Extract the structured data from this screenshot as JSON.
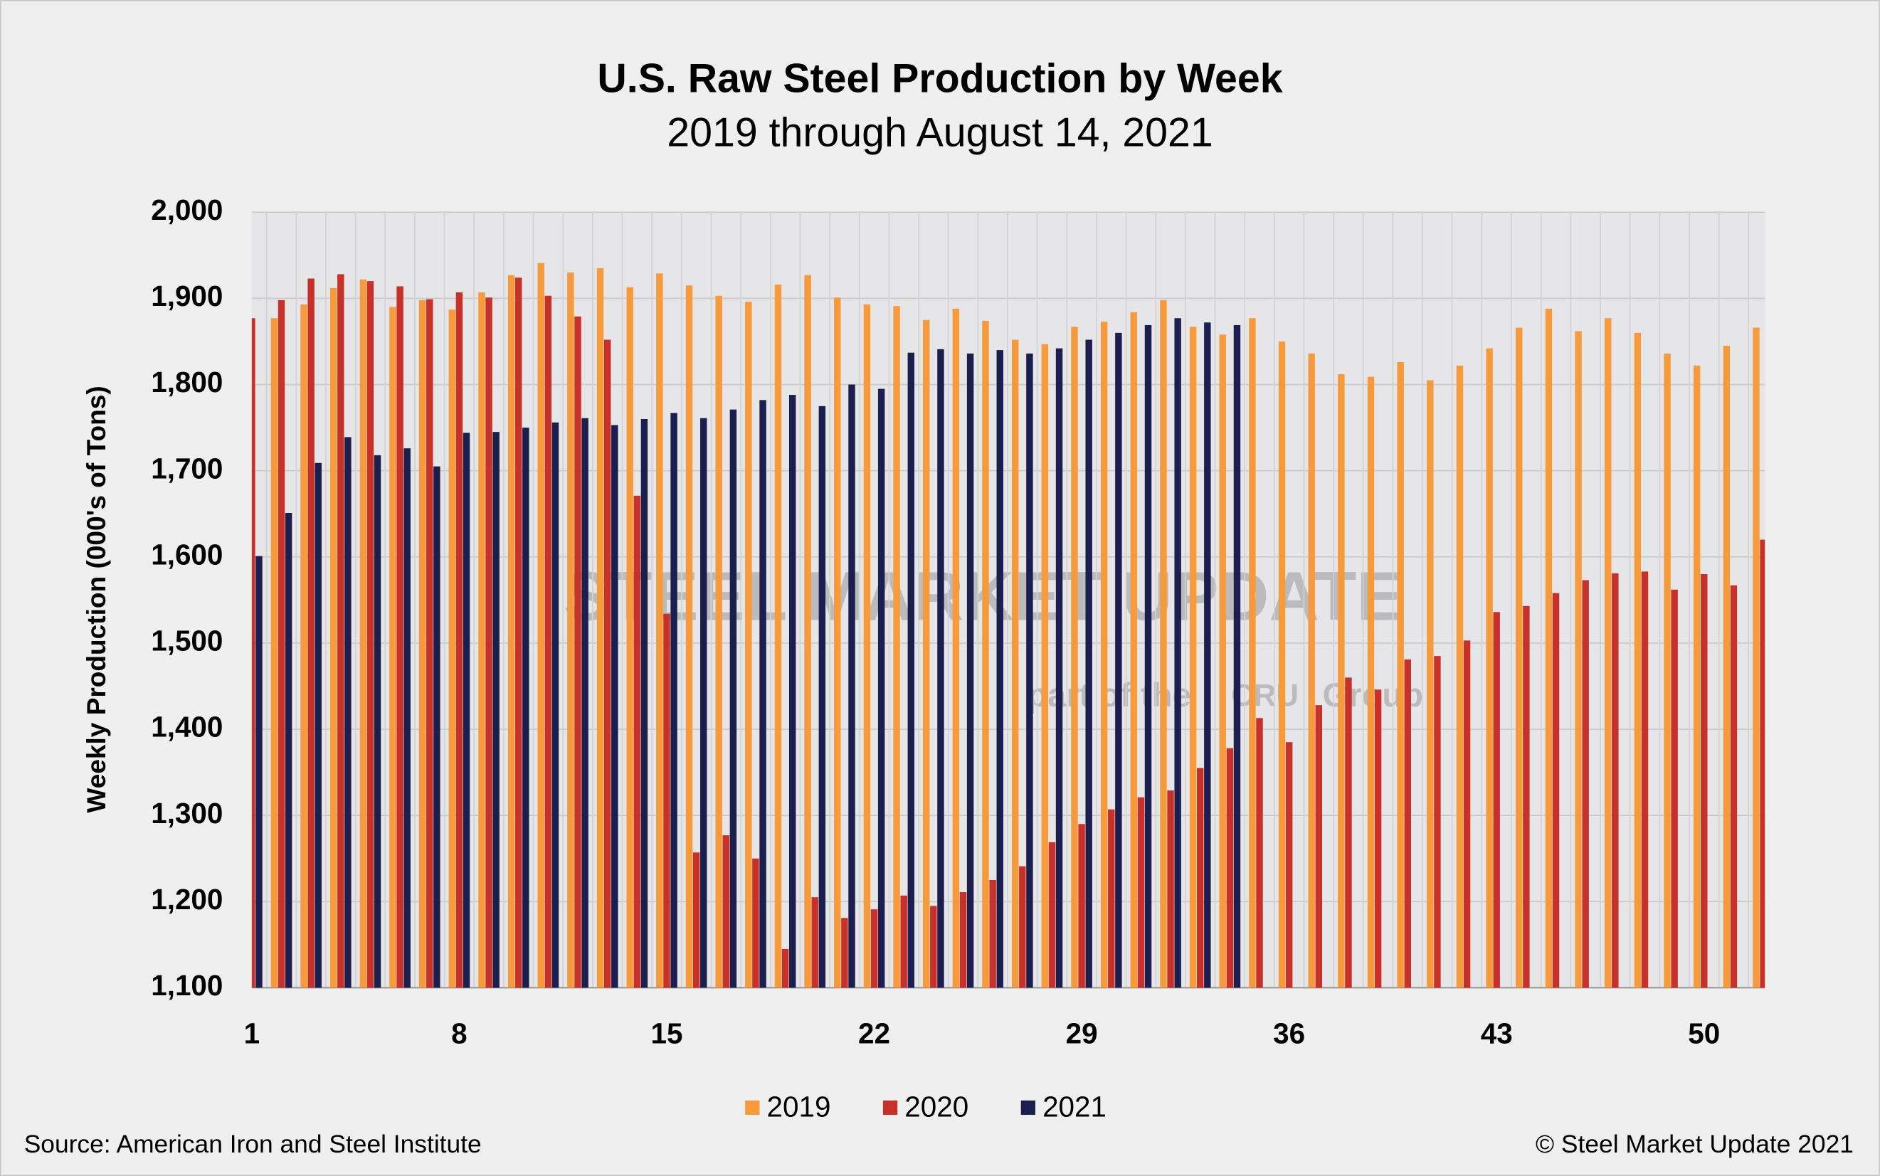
{
  "chart_data": {
    "type": "bar",
    "title": "U.S. Raw Steel Production by Week",
    "subtitle": "2019 through August 14, 2021",
    "y_label": "Weekly Production (000's of Tons)",
    "source": "Source: American Iron and Steel Institute",
    "copyright": "© Steel Market Update 2021",
    "watermark": [
      "STEEL MARKET UPDATE",
      "part of the",
      "CRU",
      "Group"
    ],
    "categories": [
      "1",
      null,
      null,
      null,
      null,
      null,
      null,
      "8",
      null,
      null,
      null,
      null,
      null,
      null,
      "15",
      null,
      null,
      null,
      null,
      null,
      null,
      "22",
      null,
      null,
      null,
      null,
      null,
      null,
      "29",
      null,
      null,
      null,
      null,
      null,
      null,
      "36",
      null,
      null,
      null,
      null,
      null,
      null,
      "43",
      null,
      null,
      null,
      null,
      null,
      null,
      "50",
      null,
      null
    ],
    "series": [
      {
        "name": "2019",
        "color": "#f79a3b",
        "values": [
          null,
          1877,
          1893,
          1912,
          1922,
          1890,
          1898,
          1887,
          1907,
          1927,
          1941,
          1930,
          1935,
          1913,
          1929,
          1915,
          1903,
          1896,
          1916,
          1927,
          1901,
          1893,
          1891,
          1875,
          1888,
          1874,
          1852,
          1847,
          1867,
          1873,
          1884,
          1898,
          1867,
          1858,
          1877,
          1850,
          1836,
          1812,
          1809,
          1826,
          1805,
          1822,
          1842,
          1866,
          1888,
          1862,
          1877,
          1860,
          1836,
          1822,
          1845,
          1866
        ]
      },
      {
        "name": "2020",
        "color": "#c8302a",
        "values": [
          1877,
          1898,
          1923,
          1928,
          1920,
          1914,
          1899,
          1907,
          1901,
          1924,
          1903,
          1879,
          1852,
          1671,
          1534,
          1257,
          1277,
          1250,
          1145,
          1205,
          1181,
          1191,
          1207,
          1195,
          1211,
          1225,
          1241,
          1269,
          1290,
          1307,
          1321,
          1329,
          1355,
          1378,
          1413,
          1385,
          1428,
          1460,
          1446,
          1481,
          1485,
          1503,
          1536,
          1543,
          1558,
          1573,
          1581,
          1583,
          1562,
          1580,
          1567,
          1620
        ]
      },
      {
        "name": "2021",
        "color": "#1c1f4d",
        "values": [
          1601,
          1651,
          1709,
          1739,
          1718,
          1726,
          1705,
          1744,
          1745,
          1750,
          1756,
          1761,
          1753,
          1760,
          1767,
          1761,
          1771,
          1782,
          1788,
          1775,
          1800,
          1795,
          1837,
          1841,
          1836,
          1840,
          1836,
          1842,
          1852,
          1860,
          1869,
          1877,
          1872,
          1869,
          null,
          null,
          null,
          null,
          null,
          null,
          null,
          null,
          null,
          null,
          null,
          null,
          null,
          null,
          null,
          null,
          null,
          null
        ]
      }
    ],
    "ylim": [
      1100,
      2000
    ],
    "yticks": [
      {
        "value": 1100,
        "label": "1,100"
      },
      {
        "value": 1200,
        "label": "1,200"
      },
      {
        "value": 1300,
        "label": "1,300"
      },
      {
        "value": 1400,
        "label": "1,400"
      },
      {
        "value": 1500,
        "label": "1,500"
      },
      {
        "value": 1600,
        "label": "1,600"
      },
      {
        "value": 1700,
        "label": "1,700"
      },
      {
        "value": 1800,
        "label": "1,800"
      },
      {
        "value": 1900,
        "label": "1,900"
      },
      {
        "value": 2000,
        "label": "2,000"
      }
    ],
    "grid": true,
    "legend": "bottom"
  }
}
